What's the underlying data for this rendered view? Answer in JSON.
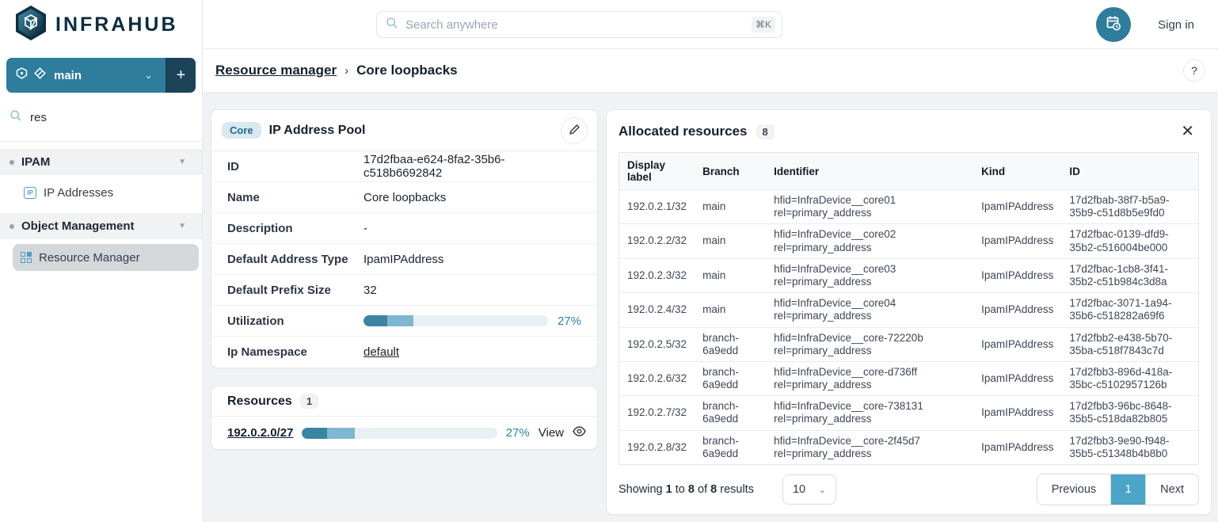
{
  "brand": {
    "name": "INFRAHUB"
  },
  "topbar": {
    "search_placeholder": "Search anywhere",
    "search_shortcut": "⌘K",
    "sign_in": "Sign in"
  },
  "sidebar": {
    "branch": {
      "name": "main"
    },
    "search_value": "res",
    "sections": [
      {
        "label": "IPAM",
        "items": [
          {
            "label": "IP Addresses"
          }
        ]
      },
      {
        "label": "Object Management",
        "items": [
          {
            "label": "Resource Manager"
          }
        ]
      }
    ]
  },
  "breadcrumb": {
    "parent": "Resource manager",
    "current": "Core loopbacks"
  },
  "pool_card": {
    "badge": "Core",
    "title": "IP Address Pool",
    "rows": [
      {
        "label": "ID",
        "value": "17d2fbaa-e624-8fa2-35b6-c518b6692842"
      },
      {
        "label": "Name",
        "value": "Core loopbacks"
      },
      {
        "label": "Description",
        "value": "-"
      },
      {
        "label": "Default Address Type",
        "value": "IpamIPAddress"
      },
      {
        "label": "Default Prefix Size",
        "value": "32"
      }
    ],
    "utilization": {
      "label": "Utilization",
      "percent_label": "27%",
      "dark": 13,
      "light": 14
    },
    "namespace": {
      "label": "Ip Namespace",
      "value": "default"
    }
  },
  "resources_card": {
    "title": "Resources",
    "count": "1",
    "row": {
      "link": "192.0.2.0/27",
      "percent_label": "27%",
      "dark": 13,
      "light": 14,
      "view_label": "View"
    }
  },
  "allocated": {
    "title": "Allocated resources",
    "count": "8",
    "columns": [
      "Display label",
      "Branch",
      "Identifier",
      "Kind",
      "ID"
    ],
    "rows": [
      {
        "display_label": "192.0.2.1/32",
        "branch": "main",
        "identifier_1": "hfid=InfraDevice__core01",
        "identifier_2": "rel=primary_address",
        "kind": "IpamIPAddress",
        "id": "17d2fbab-38f7-b5a9-35b9-c51d8b5e9fd0"
      },
      {
        "display_label": "192.0.2.2/32",
        "branch": "main",
        "identifier_1": "hfid=InfraDevice__core02",
        "identifier_2": "rel=primary_address",
        "kind": "IpamIPAddress",
        "id": "17d2fbac-0139-dfd9-35b2-c516004be000"
      },
      {
        "display_label": "192.0.2.3/32",
        "branch": "main",
        "identifier_1": "hfid=InfraDevice__core03",
        "identifier_2": "rel=primary_address",
        "kind": "IpamIPAddress",
        "id": "17d2fbac-1cb8-3f41-35b2-c51b984c3d8a"
      },
      {
        "display_label": "192.0.2.4/32",
        "branch": "main",
        "identifier_1": "hfid=InfraDevice__core04",
        "identifier_2": "rel=primary_address",
        "kind": "IpamIPAddress",
        "id": "17d2fbac-3071-1a94-35b6-c518282a69f6"
      },
      {
        "display_label": "192.0.2.5/32",
        "branch": "branch-6a9edd",
        "identifier_1": "hfid=InfraDevice__core-72220b",
        "identifier_2": "rel=primary_address",
        "kind": "IpamIPAddress",
        "id": "17d2fbb2-e438-5b70-35ba-c518f7843c7d"
      },
      {
        "display_label": "192.0.2.6/32",
        "branch": "branch-6a9edd",
        "identifier_1": "hfid=InfraDevice__core-d736ff",
        "identifier_2": "rel=primary_address",
        "kind": "IpamIPAddress",
        "id": "17d2fbb3-896d-418a-35bc-c5102957126b"
      },
      {
        "display_label": "192.0.2.7/32",
        "branch": "branch-6a9edd",
        "identifier_1": "hfid=InfraDevice__core-738131",
        "identifier_2": "rel=primary_address",
        "kind": "IpamIPAddress",
        "id": "17d2fbb3-96bc-8648-35b5-c518da82b805"
      },
      {
        "display_label": "192.0.2.8/32",
        "branch": "branch-6a9edd",
        "identifier_1": "hfid=InfraDevice__core-2f45d7",
        "identifier_2": "rel=primary_address",
        "kind": "IpamIPAddress",
        "id": "17d2fbb3-9e90-f948-35b5-c51348b4b8b0"
      }
    ],
    "footer": {
      "showing_word": "Showing",
      "from": "1",
      "to_word": "to",
      "to": "8",
      "of_word": "of",
      "total": "8",
      "results_word": "results",
      "page_size": "10",
      "previous": "Previous",
      "page": "1",
      "next": "Next"
    }
  },
  "colors": {
    "brand_teal": "#2e7d9c",
    "brand_navy": "#0c2d3f",
    "active_page": "#4aa5c8",
    "progress_dark": "#3a84a4",
    "progress_light": "#7db7d0",
    "progress_track": "#e8f0f4"
  }
}
